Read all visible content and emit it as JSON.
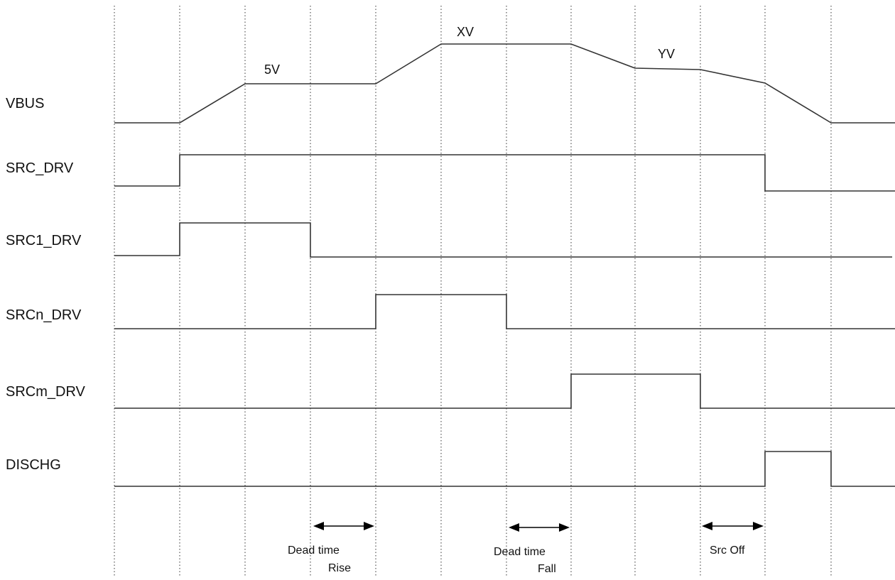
{
  "signals": [
    {
      "id": "vbus",
      "label": "VBUS"
    },
    {
      "id": "src_drv",
      "label": "SRC_DRV"
    },
    {
      "id": "src1_drv",
      "label": "SRC1_DRV"
    },
    {
      "id": "srcn_drv",
      "label": "SRCn_DRV"
    },
    {
      "id": "srcm_drv",
      "label": "SRCm_DRV"
    },
    {
      "id": "dischg",
      "label": "DISCHG"
    }
  ],
  "levels": {
    "v5": "5V",
    "xv": "XV",
    "yv": "YV"
  },
  "annotations": {
    "dead_time_rise": {
      "line1": "Dead time",
      "line2": "Rise"
    },
    "dead_time_fall": {
      "line1": "Dead time",
      "line2": "Fall"
    },
    "src_off": {
      "line1": "Src Off"
    }
  }
}
